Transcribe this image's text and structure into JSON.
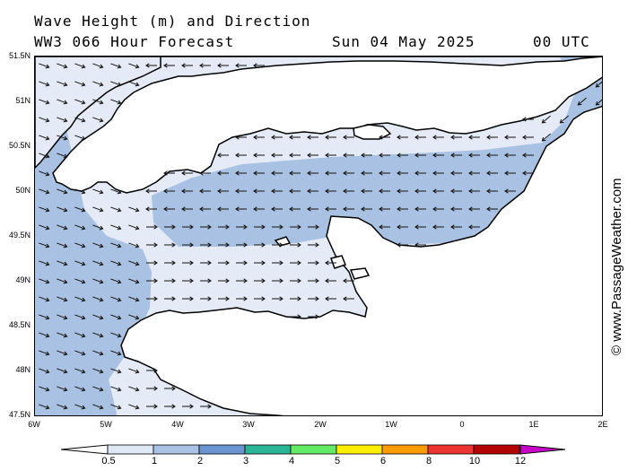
{
  "header": {
    "title": "Wave Height (m) and Direction",
    "model": "WW3 066 Hour Forecast",
    "date": "Sun 04 May 2025",
    "time": "00 UTC"
  },
  "credit": "© www.PassageWeather.com",
  "axes": {
    "lat_labels": [
      "51.5N",
      "51N",
      "50.5N",
      "50N",
      "49.5N",
      "49N",
      "48.5N",
      "48N",
      "47.5N"
    ],
    "lon_labels": [
      "6W",
      "5W",
      "4W",
      "3W",
      "2W",
      "1W",
      "0",
      "1E",
      "2E"
    ]
  },
  "legend": {
    "labels": [
      "0.5",
      "1",
      "2",
      "3",
      "4",
      "5",
      "6",
      "8",
      "10",
      "12"
    ],
    "colors": [
      "#dfe8f5",
      "#a9c2e3",
      "#6a95d2",
      "#2bb596",
      "#64ea64",
      "#ffee00",
      "#ff9a00",
      "#ee3333",
      "#b40000",
      "#c800c8"
    ]
  },
  "colors": {
    "wave_low": "#e4ebf6",
    "wave_mid": "#a9c2e3",
    "land": "#ffffff",
    "coast": "#000000"
  }
}
